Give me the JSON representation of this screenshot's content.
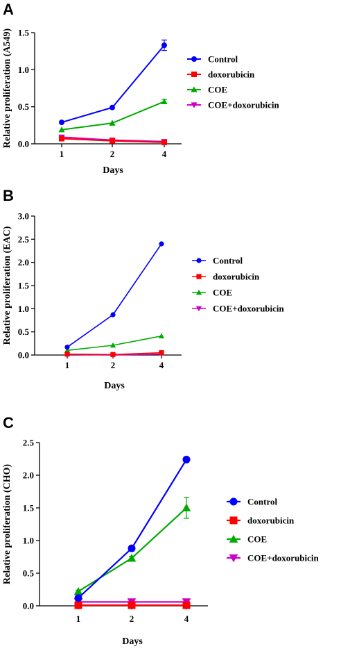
{
  "chart_data": [
    {
      "type": "line",
      "panel": "A",
      "x": [
        1,
        2,
        4
      ],
      "xlabel": "Days",
      "ylabel": "Relative proliferation (A549)",
      "ylim": [
        0,
        1.5
      ],
      "yticks": [
        "0.0",
        "0.5",
        "1.0",
        "1.5"
      ],
      "grid": false,
      "legend_position": "right",
      "series": [
        {
          "name": "Control",
          "values": [
            0.29,
            0.49,
            1.33
          ],
          "errors": [
            0,
            0,
            0.07
          ],
          "color": "#0000ff",
          "marker": "circle"
        },
        {
          "name": "doxorubicin",
          "values": [
            0.07,
            0.04,
            0.02
          ],
          "errors": [
            0,
            0,
            0
          ],
          "color": "#ff0000",
          "marker": "square"
        },
        {
          "name": "COE",
          "values": [
            0.19,
            0.28,
            0.57
          ],
          "errors": [
            0,
            0,
            0.03
          ],
          "color": "#00aa00",
          "marker": "triangle-up"
        },
        {
          "name": "COE+doxorubicin",
          "values": [
            0.09,
            0.05,
            0.03
          ],
          "errors": [
            0,
            0,
            0
          ],
          "color": "#cc00cc",
          "marker": "triangle-down"
        }
      ]
    },
    {
      "type": "line",
      "panel": "B",
      "x": [
        1,
        2,
        4
      ],
      "xlabel": "Days",
      "ylabel": "Relative proliferation (EAC)",
      "ylim": [
        0,
        3.0
      ],
      "yticks": [
        "0.0",
        "0.5",
        "1.0",
        "1.5",
        "2.0",
        "2.5",
        "3.0"
      ],
      "grid": false,
      "legend_position": "right",
      "series": [
        {
          "name": "Control",
          "values": [
            0.17,
            0.87,
            2.4
          ],
          "errors": [
            0,
            0,
            0
          ],
          "color": "#0000ff",
          "marker": "circle"
        },
        {
          "name": "doxorubicin",
          "values": [
            0.02,
            0.01,
            0.05
          ],
          "errors": [
            0,
            0,
            0
          ],
          "color": "#ff0000",
          "marker": "square"
        },
        {
          "name": "COE",
          "values": [
            0.1,
            0.21,
            0.41
          ],
          "errors": [
            0,
            0,
            0
          ],
          "color": "#00aa00",
          "marker": "triangle-up"
        },
        {
          "name": "COE+doxorubicin",
          "values": [
            0.01,
            0.0,
            0.02
          ],
          "errors": [
            0,
            0,
            0
          ],
          "color": "#cc00cc",
          "marker": "triangle-down"
        }
      ]
    },
    {
      "type": "line",
      "panel": "C",
      "x": [
        1,
        2,
        4
      ],
      "xlabel": "Days",
      "ylabel": "Relative proliferation (CHO)",
      "ylim": [
        0,
        2.5
      ],
      "yticks": [
        "0.0",
        "0.5",
        "1.0",
        "1.5",
        "2.0",
        "2.5"
      ],
      "grid": false,
      "legend_position": "right",
      "series": [
        {
          "name": "Control",
          "values": [
            0.12,
            0.88,
            2.24
          ],
          "errors": [
            0.02,
            0.04,
            0.04
          ],
          "color": "#0000ff",
          "marker": "circle"
        },
        {
          "name": "doxorubicin",
          "values": [
            0.01,
            0.01,
            0.01
          ],
          "errors": [
            0,
            0,
            0
          ],
          "color": "#ff0000",
          "marker": "square"
        },
        {
          "name": "COE",
          "values": [
            0.22,
            0.73,
            1.5
          ],
          "errors": [
            0.02,
            0.03,
            0.16
          ],
          "color": "#00aa00",
          "marker": "triangle-up"
        },
        {
          "name": "COE+doxorubicin",
          "values": [
            0.06,
            0.06,
            0.06
          ],
          "errors": [
            0,
            0,
            0
          ],
          "color": "#cc00cc",
          "marker": "triangle-down"
        }
      ]
    }
  ]
}
